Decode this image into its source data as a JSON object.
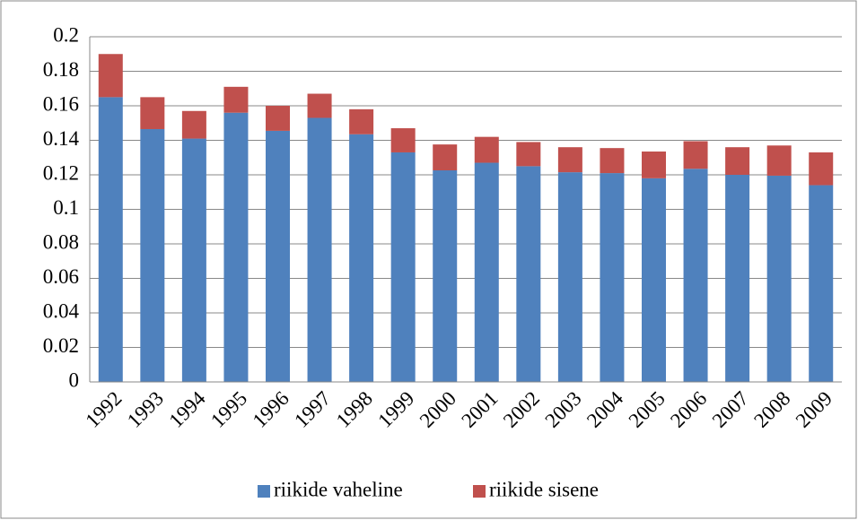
{
  "chart_data": {
    "type": "bar",
    "stacked": true,
    "categories": [
      "1992",
      "1993",
      "1994",
      "1995",
      "1996",
      "1997",
      "1998",
      "1999",
      "2000",
      "2001",
      "2002",
      "2003",
      "2004",
      "2005",
      "2006",
      "2007",
      "2008",
      "2009"
    ],
    "series": [
      {
        "name": "riikide vaheline",
        "color": "#4f81bd",
        "values": [
          0.165,
          0.1465,
          0.141,
          0.156,
          0.1455,
          0.153,
          0.1435,
          0.133,
          0.1226,
          0.127,
          0.125,
          0.1215,
          0.121,
          0.118,
          0.1235,
          0.12,
          0.1195,
          0.114
        ]
      },
      {
        "name": "riikide sisene",
        "color": "#c0504d",
        "values": [
          0.025,
          0.0185,
          0.016,
          0.015,
          0.0145,
          0.014,
          0.0145,
          0.014,
          0.015,
          0.015,
          0.014,
          0.0145,
          0.0145,
          0.0155,
          0.016,
          0.016,
          0.0175,
          0.019
        ]
      }
    ],
    "ylim": [
      0,
      0.2
    ],
    "yticks": [
      0,
      0.02,
      0.04,
      0.06,
      0.08,
      0.1,
      0.12,
      0.14,
      0.16,
      0.18,
      0.2
    ],
    "grid": true,
    "legend": "bottom"
  }
}
